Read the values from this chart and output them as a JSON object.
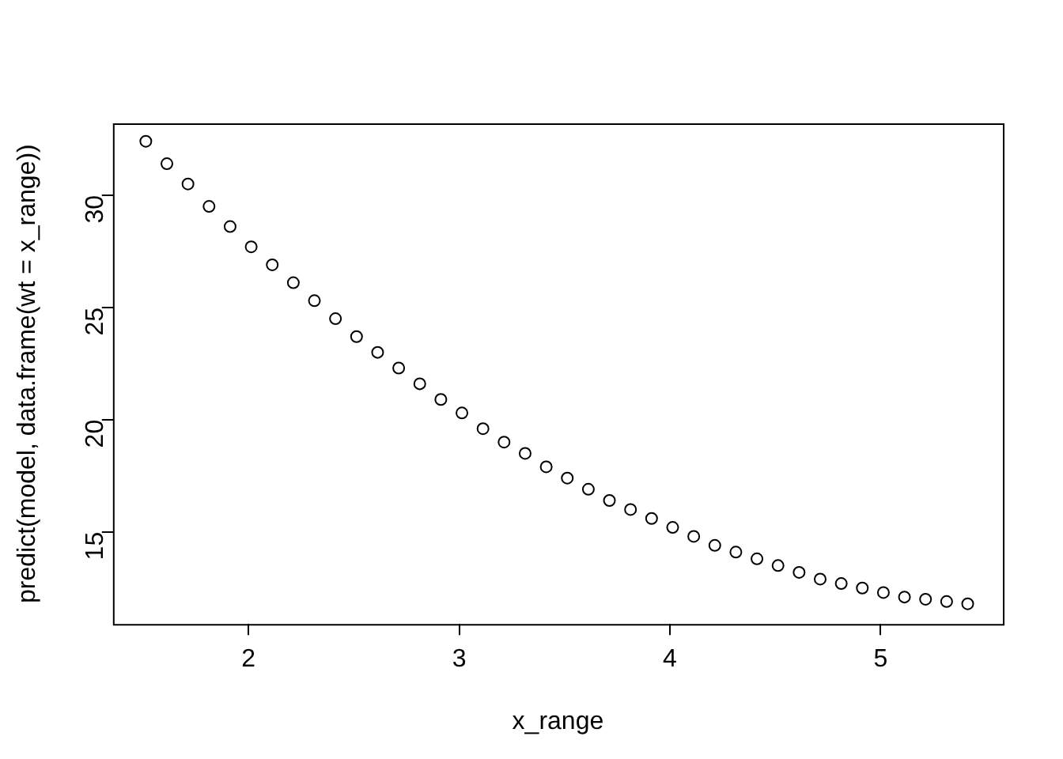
{
  "chart_data": {
    "type": "scatter",
    "xlabel": "x_range",
    "ylabel": "predict(model, data.frame(wt = x_range))",
    "x": [
      1.513,
      1.613,
      1.713,
      1.813,
      1.913,
      2.013,
      2.113,
      2.213,
      2.313,
      2.413,
      2.513,
      2.613,
      2.713,
      2.813,
      2.913,
      3.013,
      3.113,
      3.213,
      3.313,
      3.413,
      3.513,
      3.613,
      3.713,
      3.813,
      3.913,
      4.013,
      4.113,
      4.213,
      4.313,
      4.413,
      4.513,
      4.613,
      4.713,
      4.813,
      4.913,
      5.013,
      5.113,
      5.213,
      5.313,
      5.413
    ],
    "series": [
      {
        "color": "#000000",
        "values": [
          32.4,
          31.4,
          30.5,
          29.5,
          28.6,
          27.7,
          26.9,
          26.1,
          25.3,
          24.5,
          23.7,
          23.0,
          22.3,
          21.6,
          20.9,
          20.3,
          19.6,
          19.0,
          18.5,
          17.9,
          17.4,
          16.9,
          16.4,
          16.0,
          15.6,
          15.2,
          14.8,
          14.4,
          14.1,
          13.8,
          13.5,
          13.2,
          12.9,
          12.7,
          12.5,
          12.3,
          12.1,
          12.0,
          11.9,
          11.8
        ]
      }
    ],
    "xlim": [
      1.357,
      5.58
    ],
    "ylim": [
      10.9,
      33.2
    ],
    "xticks": [
      2,
      3,
      4,
      5
    ],
    "yticks": [
      15,
      20,
      25,
      30
    ],
    "grid": false,
    "legend": false,
    "marker": "circle"
  }
}
